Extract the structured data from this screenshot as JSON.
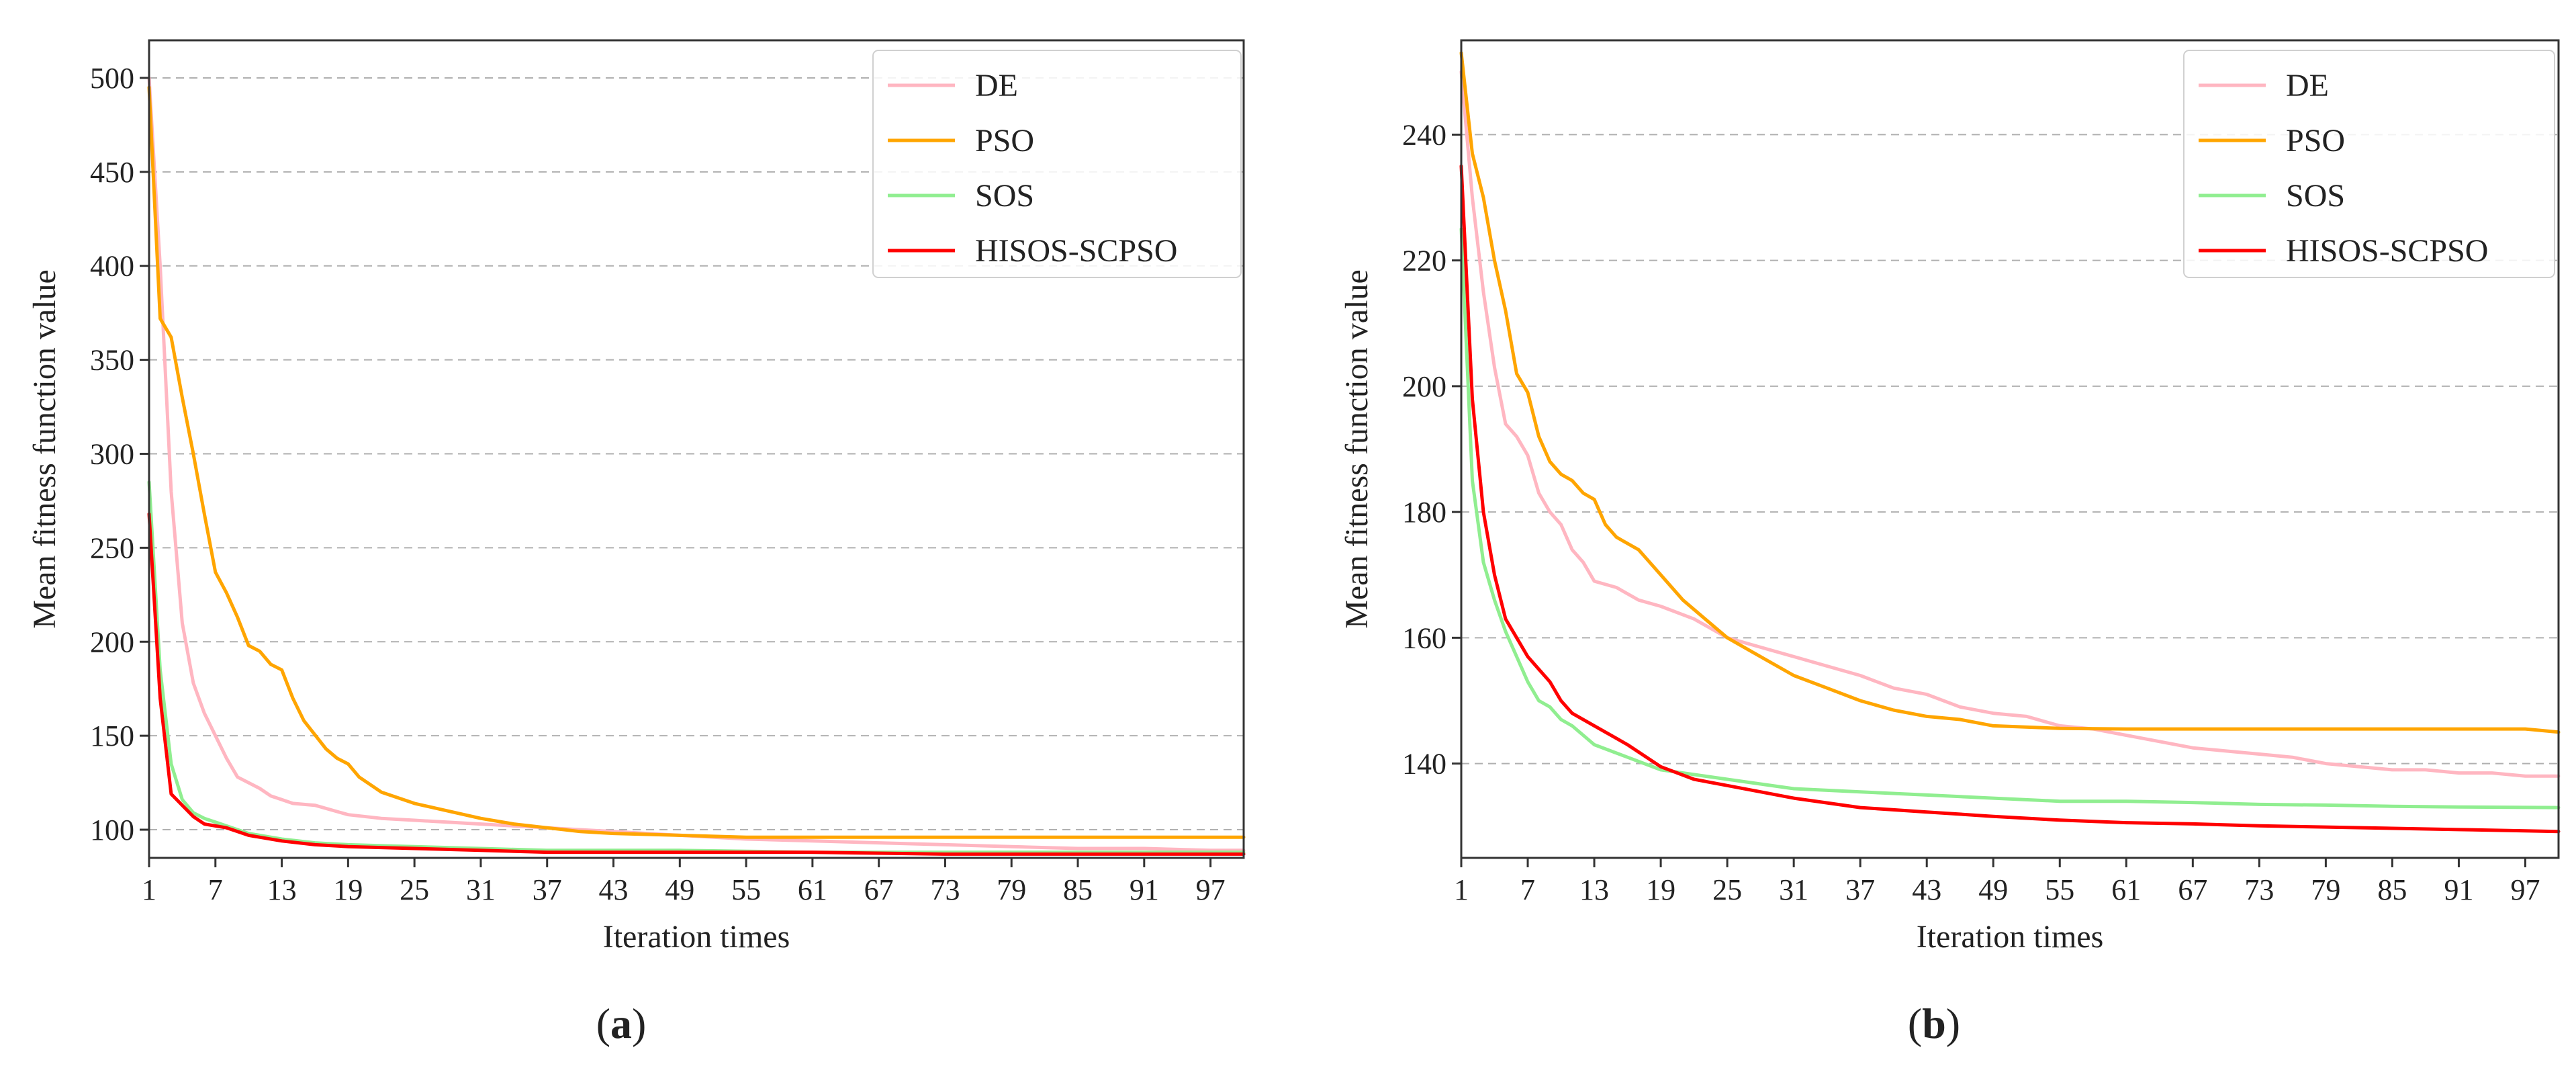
{
  "figure": {
    "captions": [
      {
        "open": "(",
        "letter": "a",
        "close": ")"
      },
      {
        "open": "(",
        "letter": "b",
        "close": ")"
      }
    ]
  },
  "styles": {
    "colors": {
      "DE": "#ffb6c1",
      "PSO": "#ffa500",
      "SOS": "#90ee90",
      "HISOS-SCPSO": "#ff0000",
      "grid": "#b0b0b0",
      "axis": "#333333"
    }
  },
  "chart_data": [
    {
      "type": "line",
      "title": "",
      "xlabel": "Iteration times",
      "ylabel": "Mean fitness function value",
      "xlim": [
        1,
        100
      ],
      "ylim": [
        85,
        520
      ],
      "xticks": [
        1,
        7,
        13,
        19,
        25,
        31,
        37,
        43,
        49,
        55,
        61,
        67,
        73,
        79,
        85,
        91,
        97
      ],
      "yticks": [
        100,
        150,
        200,
        250,
        300,
        350,
        400,
        450,
        500
      ],
      "grid": "horizontal dashed",
      "legend_position": "top-right",
      "series": [
        {
          "name": "DE",
          "color": "#ffb6c1",
          "points": [
            [
              1,
              500
            ],
            [
              2,
              400
            ],
            [
              3,
              280
            ],
            [
              4,
              210
            ],
            [
              5,
              178
            ],
            [
              6,
              162
            ],
            [
              7,
              150
            ],
            [
              8,
              138
            ],
            [
              9,
              128
            ],
            [
              10,
              125
            ],
            [
              11,
              122
            ],
            [
              12,
              118
            ],
            [
              13,
              116
            ],
            [
              14,
              114
            ],
            [
              16,
              113
            ],
            [
              19,
              108
            ],
            [
              22,
              106
            ],
            [
              25,
              105
            ],
            [
              31,
              103
            ],
            [
              37,
              101
            ],
            [
              43,
              99
            ],
            [
              49,
              97
            ],
            [
              55,
              95
            ],
            [
              61,
              94
            ],
            [
              67,
              93
            ],
            [
              73,
              92
            ],
            [
              79,
              91
            ],
            [
              85,
              90
            ],
            [
              91,
              90
            ],
            [
              97,
              89
            ],
            [
              100,
              89
            ]
          ]
        },
        {
          "name": "PSO",
          "color": "#ffa500",
          "points": [
            [
              1,
              495
            ],
            [
              2,
              372
            ],
            [
              3,
              362
            ],
            [
              4,
              330
            ],
            [
              5,
              300
            ],
            [
              6,
              268
            ],
            [
              7,
              237
            ],
            [
              8,
              226
            ],
            [
              9,
              213
            ],
            [
              10,
              198
            ],
            [
              11,
              195
            ],
            [
              12,
              188
            ],
            [
              13,
              185
            ],
            [
              14,
              170
            ],
            [
              15,
              158
            ],
            [
              17,
              143
            ],
            [
              18,
              138
            ],
            [
              19,
              135
            ],
            [
              20,
              128
            ],
            [
              22,
              120
            ],
            [
              25,
              114
            ],
            [
              28,
              110
            ],
            [
              31,
              106
            ],
            [
              34,
              103
            ],
            [
              37,
              101
            ],
            [
              40,
              99
            ],
            [
              43,
              98
            ],
            [
              49,
              97
            ],
            [
              55,
              96
            ],
            [
              61,
              96
            ],
            [
              67,
              96
            ],
            [
              73,
              96
            ],
            [
              79,
              96
            ],
            [
              85,
              96
            ],
            [
              91,
              96
            ],
            [
              97,
              96
            ],
            [
              100,
              96
            ]
          ]
        },
        {
          "name": "SOS",
          "color": "#90ee90",
          "points": [
            [
              1,
              285
            ],
            [
              2,
              185
            ],
            [
              3,
              135
            ],
            [
              4,
              116
            ],
            [
              5,
              109
            ],
            [
              6,
              106
            ],
            [
              7,
              104
            ],
            [
              8,
              102
            ],
            [
              9,
              100
            ],
            [
              10,
              98
            ],
            [
              13,
              95
            ],
            [
              16,
              93
            ],
            [
              19,
              92
            ],
            [
              25,
              91
            ],
            [
              31,
              90
            ],
            [
              37,
              89
            ],
            [
              49,
              89
            ],
            [
              61,
              88
            ],
            [
              73,
              88
            ],
            [
              85,
              88
            ],
            [
              100,
              88
            ]
          ]
        },
        {
          "name": "HISOS-SCPSO",
          "color": "#ff0000",
          "points": [
            [
              1,
              268
            ],
            [
              2,
              170
            ],
            [
              3,
              119
            ],
            [
              4,
              113
            ],
            [
              5,
              107
            ],
            [
              6,
              103
            ],
            [
              7,
              102
            ],
            [
              8,
              101
            ],
            [
              9,
              99
            ],
            [
              10,
              97
            ],
            [
              13,
              94
            ],
            [
              16,
              92
            ],
            [
              19,
              91
            ],
            [
              25,
              90
            ],
            [
              31,
              89
            ],
            [
              37,
              88
            ],
            [
              49,
              88
            ],
            [
              61,
              88
            ],
            [
              73,
              87
            ],
            [
              85,
              87
            ],
            [
              100,
              87
            ]
          ]
        }
      ]
    },
    {
      "type": "line",
      "title": "",
      "xlabel": "Iteration times",
      "ylabel": "Mean fitness function value",
      "xlim": [
        1,
        100
      ],
      "ylim": [
        125,
        255
      ],
      "xticks": [
        1,
        7,
        13,
        19,
        25,
        31,
        37,
        43,
        49,
        55,
        61,
        67,
        73,
        79,
        85,
        91,
        97
      ],
      "yticks": [
        140,
        160,
        180,
        200,
        220,
        240
      ],
      "grid": "horizontal dashed",
      "legend_position": "top-right",
      "series": [
        {
          "name": "DE",
          "color": "#ffb6c1",
          "points": [
            [
              1,
              250
            ],
            [
              2,
              230
            ],
            [
              3,
              215
            ],
            [
              4,
              203
            ],
            [
              5,
              194
            ],
            [
              6,
              192
            ],
            [
              7,
              189
            ],
            [
              8,
              183
            ],
            [
              9,
              180
            ],
            [
              10,
              178
            ],
            [
              11,
              174
            ],
            [
              12,
              172
            ],
            [
              13,
              169
            ],
            [
              15,
              168
            ],
            [
              17,
              166
            ],
            [
              19,
              165
            ],
            [
              22,
              163
            ],
            [
              25,
              160
            ],
            [
              28,
              158.5
            ],
            [
              31,
              157
            ],
            [
              34,
              155.5
            ],
            [
              37,
              154
            ],
            [
              40,
              152
            ],
            [
              43,
              151
            ],
            [
              46,
              149
            ],
            [
              49,
              148
            ],
            [
              52,
              147.5
            ],
            [
              55,
              146
            ],
            [
              58,
              145.5
            ],
            [
              61,
              144.5
            ],
            [
              64,
              143.5
            ],
            [
              67,
              142.5
            ],
            [
              70,
              142
            ],
            [
              73,
              141.5
            ],
            [
              76,
              141
            ],
            [
              79,
              140
            ],
            [
              82,
              139.5
            ],
            [
              85,
              139
            ],
            [
              88,
              139
            ],
            [
              91,
              138.5
            ],
            [
              94,
              138.5
            ],
            [
              97,
              138
            ],
            [
              100,
              138
            ]
          ]
        },
        {
          "name": "PSO",
          "color": "#ffa500",
          "points": [
            [
              1,
              253
            ],
            [
              2,
              237
            ],
            [
              3,
              230
            ],
            [
              4,
              220
            ],
            [
              5,
              212
            ],
            [
              6,
              202
            ],
            [
              7,
              199
            ],
            [
              8,
              192
            ],
            [
              9,
              188
            ],
            [
              10,
              186
            ],
            [
              11,
              185
            ],
            [
              12,
              183
            ],
            [
              13,
              182
            ],
            [
              14,
              178
            ],
            [
              15,
              176
            ],
            [
              17,
              174
            ],
            [
              18,
              172
            ],
            [
              19,
              170
            ],
            [
              21,
              166
            ],
            [
              23,
              163
            ],
            [
              25,
              160
            ],
            [
              28,
              157
            ],
            [
              31,
              154
            ],
            [
              34,
              152
            ],
            [
              37,
              150
            ],
            [
              40,
              148.5
            ],
            [
              43,
              147.5
            ],
            [
              46,
              147
            ],
            [
              49,
              146
            ],
            [
              55,
              145.6
            ],
            [
              61,
              145.5
            ],
            [
              67,
              145.5
            ],
            [
              73,
              145.5
            ],
            [
              79,
              145.5
            ],
            [
              85,
              145.5
            ],
            [
              91,
              145.5
            ],
            [
              97,
              145.5
            ],
            [
              100,
              145
            ]
          ]
        },
        {
          "name": "SOS",
          "color": "#90ee90",
          "points": [
            [
              1,
              225
            ],
            [
              2,
              185
            ],
            [
              3,
              172
            ],
            [
              4,
              166
            ],
            [
              5,
              161
            ],
            [
              6,
              157
            ],
            [
              7,
              153
            ],
            [
              8,
              150
            ],
            [
              9,
              149
            ],
            [
              10,
              147
            ],
            [
              11,
              146
            ],
            [
              13,
              143
            ],
            [
              16,
              141
            ],
            [
              19,
              139
            ],
            [
              25,
              137.5
            ],
            [
              31,
              136
            ],
            [
              37,
              135.5
            ],
            [
              43,
              135
            ],
            [
              49,
              134.5
            ],
            [
              55,
              134
            ],
            [
              61,
              134
            ],
            [
              67,
              133.8
            ],
            [
              73,
              133.5
            ],
            [
              79,
              133.4
            ],
            [
              85,
              133.2
            ],
            [
              91,
              133.1
            ],
            [
              100,
              133
            ]
          ]
        },
        {
          "name": "HISOS-SCPSO",
          "color": "#ff0000",
          "points": [
            [
              1,
              235
            ],
            [
              2,
              198
            ],
            [
              3,
              180
            ],
            [
              4,
              170
            ],
            [
              5,
              163
            ],
            [
              6,
              160
            ],
            [
              7,
              157
            ],
            [
              8,
              155
            ],
            [
              9,
              153
            ],
            [
              10,
              150
            ],
            [
              11,
              148
            ],
            [
              13,
              146
            ],
            [
              16,
              143
            ],
            [
              19,
              139.5
            ],
            [
              22,
              137.5
            ],
            [
              25,
              136.5
            ],
            [
              28,
              135.5
            ],
            [
              31,
              134.5
            ],
            [
              37,
              133
            ],
            [
              43,
              132.3
            ],
            [
              49,
              131.6
            ],
            [
              55,
              131
            ],
            [
              61,
              130.6
            ],
            [
              67,
              130.4
            ],
            [
              73,
              130.1
            ],
            [
              79,
              129.9
            ],
            [
              85,
              129.7
            ],
            [
              91,
              129.5
            ],
            [
              97,
              129.3
            ],
            [
              100,
              129.2
            ]
          ]
        }
      ]
    }
  ]
}
